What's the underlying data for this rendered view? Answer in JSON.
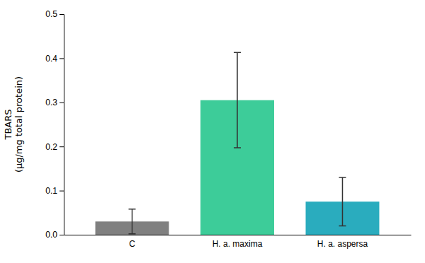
{
  "chart_data": {
    "type": "bar",
    "categories": [
      "C",
      "H. a. maxima",
      "H. a. aspersa"
    ],
    "values": [
      0.03,
      0.305,
      0.075
    ],
    "errors": [
      0.028,
      0.108,
      0.055
    ],
    "colors": [
      "#808080",
      "#3dcc99",
      "#2aacbe"
    ],
    "ylabel": "TBARS\n(μg/mg total protein)",
    "ylim": [
      0,
      0.5
    ],
    "yticks": [
      {
        "value": 0.0,
        "label": "0.0"
      },
      0.1,
      0.2,
      0.3,
      0.4,
      0.5
    ],
    "grid": false
  }
}
